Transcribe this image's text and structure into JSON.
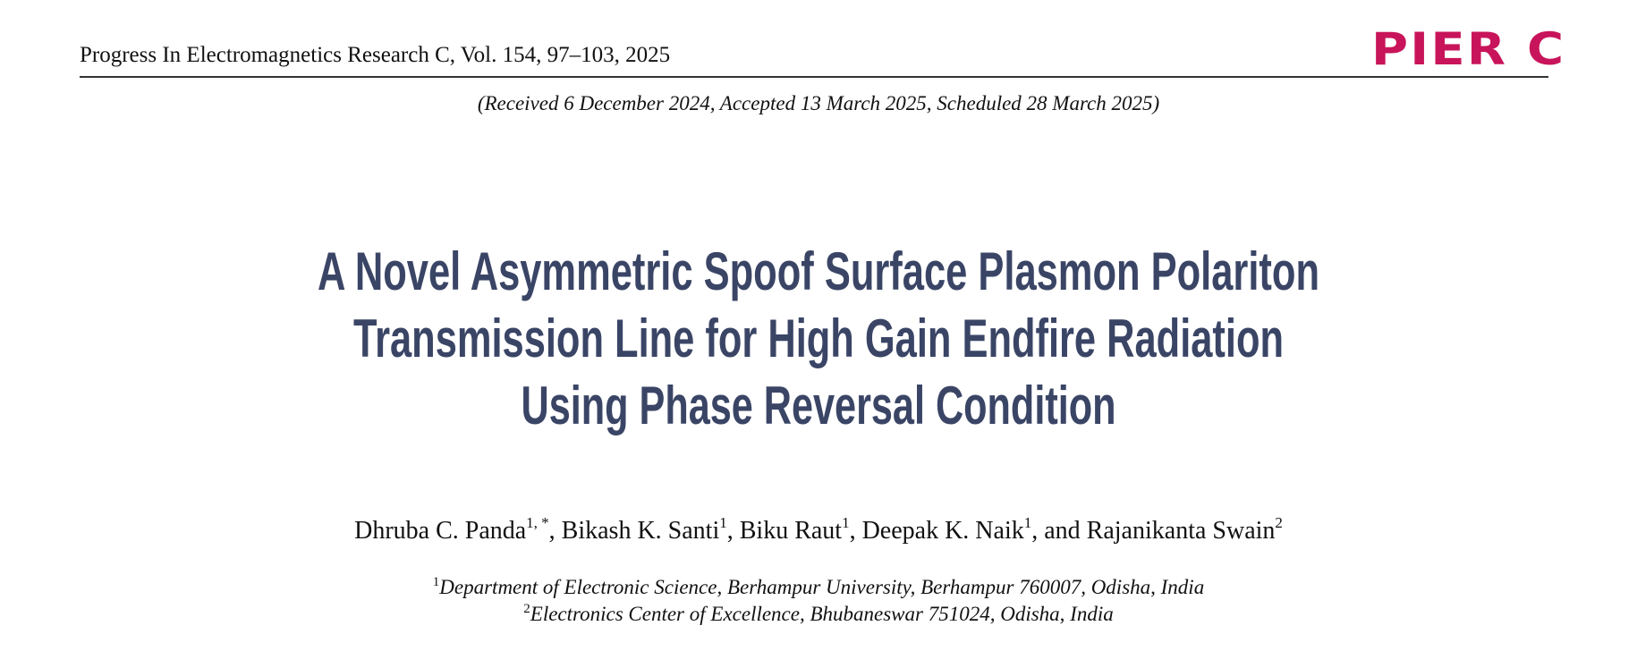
{
  "header": {
    "journal": "Progress In Electromagnetics Research C, Vol. 154, 97–103, 2025",
    "logo": "PIER C"
  },
  "received": "(Received 6 December 2024, Accepted 13 March 2025, Scheduled 28 March 2025)",
  "title": [
    "A Novel Asymmetric Spoof Surface Plasmon Polariton",
    "Transmission Line for High Gain Endfire Radiation",
    "Using Phase Reversal Condition"
  ],
  "authors": [
    {
      "name": "Dhruba C. Panda",
      "sup": "1, *",
      "after": ","
    },
    {
      "name": "Bikash K. Santi",
      "sup": "1",
      "after": ","
    },
    {
      "name": "Biku Raut",
      "sup": "1",
      "after": ","
    },
    {
      "name": "Deepak K. Naik",
      "sup": "1",
      "after": ","
    },
    {
      "before": "and",
      "name": "Rajanikanta Swain",
      "sup": "2"
    }
  ],
  "affiliations": [
    {
      "sup": "1",
      "text": "Department of Electronic Science, Berhampur University, Berhampur 760007, Odisha, India"
    },
    {
      "sup": "2",
      "text": "Electronics Center of Excellence, Bhubaneswar 751024, Odisha, India"
    }
  ]
}
